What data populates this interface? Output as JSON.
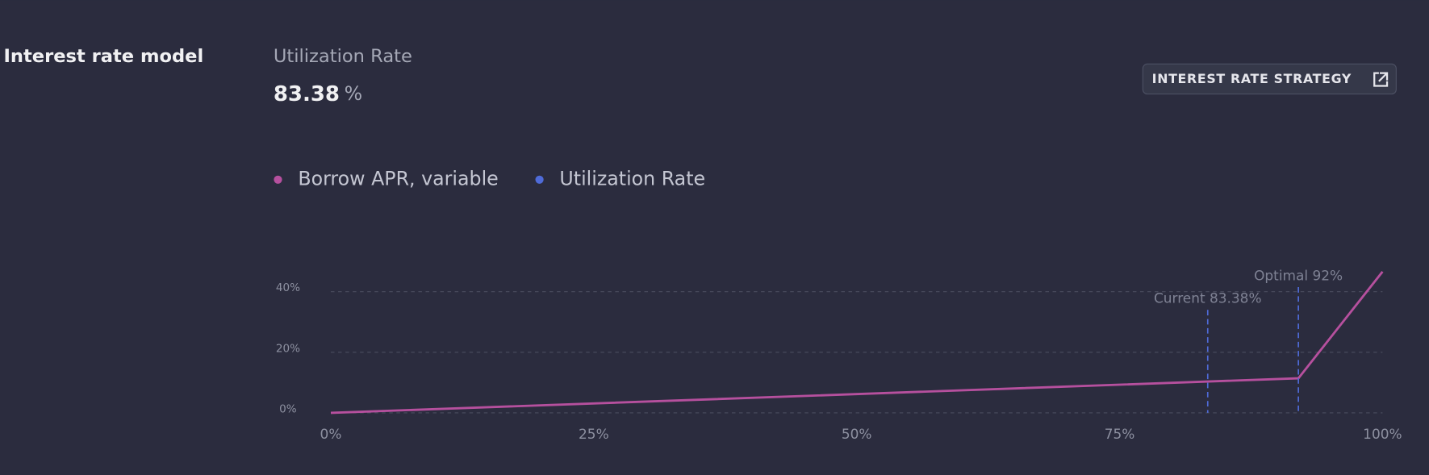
{
  "section_title": "Interest rate model",
  "utilization": {
    "label": "Utilization Rate",
    "value": "83.38",
    "unit": "%"
  },
  "button": {
    "label": "INTEREST RATE STRATEGY"
  },
  "chart_data": {
    "type": "line",
    "series": [
      {
        "name": "Borrow APR, variable",
        "color": "#b6509e",
        "x": [
          0,
          92,
          100
        ],
        "values": [
          0,
          11.4,
          46.6
        ]
      },
      {
        "name": "Utilization Rate",
        "color": "#4f6bd8",
        "lines": [
          {
            "x": 83.38,
            "label": "Current 83.38%"
          },
          {
            "x": 92,
            "label": "Optimal 92%"
          }
        ]
      }
    ],
    "xlim": [
      0,
      100
    ],
    "xticks": [
      {
        "value": 0,
        "label": "0%"
      },
      {
        "value": 25,
        "label": "25%"
      },
      {
        "value": 50,
        "label": "50%"
      },
      {
        "value": 75,
        "label": "75%"
      },
      {
        "value": 100,
        "label": "100%"
      }
    ],
    "ylim": [
      0,
      46.6
    ],
    "yticks": [
      {
        "value": 0,
        "label": "0%"
      },
      {
        "value": 20,
        "label": "20%"
      },
      {
        "value": 40,
        "label": "40%"
      }
    ],
    "grid": true
  }
}
